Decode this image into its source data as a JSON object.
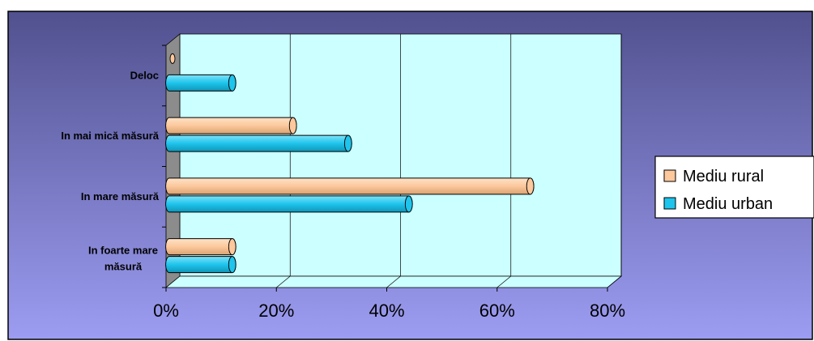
{
  "chart_data": {
    "type": "bar",
    "orientation": "horizontal",
    "three_d": true,
    "categories": [
      "In foarte mare măsură",
      "In mare măsură",
      "In mai mică măsură",
      "Deloc"
    ],
    "series": [
      {
        "name": "Mediu rural",
        "color": "#fcc89c",
        "values": [
          12,
          66,
          23,
          0
        ]
      },
      {
        "name": "Mediu urban",
        "color": "#1ec4ec",
        "values": [
          12,
          44,
          33,
          12
        ]
      }
    ],
    "xlim": [
      0,
      80
    ],
    "xticks": [
      "0%",
      "20%",
      "40%",
      "60%",
      "80%"
    ],
    "grid": true,
    "legend_position": "right",
    "colors": {
      "plot_background": "#ccffff",
      "wall_side": "#8c8c8c",
      "background_top": "#51518f",
      "background_bottom": "#9c9cf2"
    }
  }
}
